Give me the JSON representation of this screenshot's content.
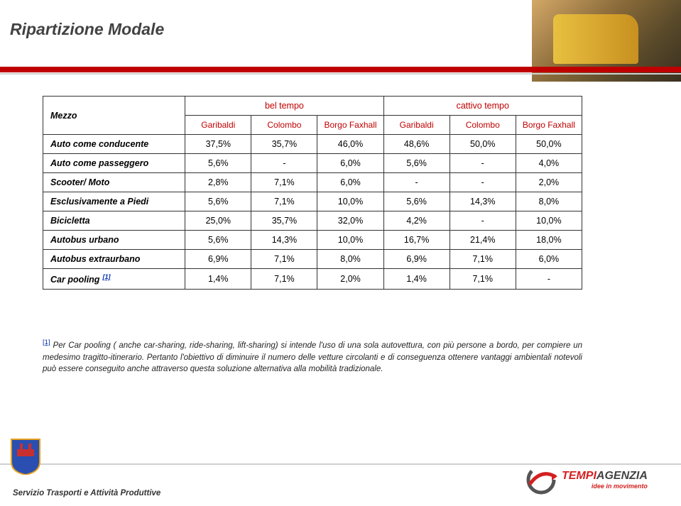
{
  "title": "Ripartizione Modale",
  "table": {
    "mezzo_label": "Mezzo",
    "group_headers": [
      "bel tempo",
      "cattivo tempo"
    ],
    "sub_headers": [
      "Garibaldi",
      "Colombo",
      "Borgo Faxhall",
      "Garibaldi",
      "Colombo",
      "Borgo Faxhall"
    ],
    "rows": [
      {
        "label": "Auto come conducente",
        "values": [
          "37,5%",
          "35,7%",
          "46,0%",
          "48,6%",
          "50,0%",
          "50,0%"
        ]
      },
      {
        "label": "Auto come passeggero",
        "values": [
          "5,6%",
          "-",
          "6,0%",
          "5,6%",
          "-",
          "4,0%"
        ]
      },
      {
        "label": "Scooter/ Moto",
        "values": [
          "2,8%",
          "7,1%",
          "6,0%",
          "-",
          "-",
          "2,0%"
        ]
      },
      {
        "label": "Esclusivamente a Piedi",
        "values": [
          "5,6%",
          "7,1%",
          "10,0%",
          "5,6%",
          "14,3%",
          "8,0%"
        ]
      },
      {
        "label": "Bicicletta",
        "values": [
          "25,0%",
          "35,7%",
          "32,0%",
          "4,2%",
          "-",
          "10,0%"
        ]
      },
      {
        "label": "Autobus urbano",
        "values": [
          "5,6%",
          "14,3%",
          "10,0%",
          "16,7%",
          "21,4%",
          "18,0%"
        ]
      },
      {
        "label": "Autobus extraurbano",
        "values": [
          "6,9%",
          "7,1%",
          "8,0%",
          "6,9%",
          "7,1%",
          "6,0%"
        ]
      },
      {
        "label": "Car pooling",
        "sup": "[1]",
        "values": [
          "1,4%",
          "7,1%",
          "2,0%",
          "1,4%",
          "7,1%",
          "-"
        ]
      }
    ],
    "col_widths": [
      "200px",
      "93px",
      "93px",
      "93px",
      "93px",
      "93px",
      "93px"
    ],
    "border_color": "#333333",
    "header_text_color": "#c00000",
    "font_size_pt": 9.5
  },
  "footnote": {
    "sup": "[1]",
    "text": "Per Car pooling ( anche car-sharing, ride-sharing, lift-sharing) si intende l'uso di una sola autovettura, con più persone a bordo, per compiere un medesimo tragitto-itinerario. Pertanto l'obiettivo di diminuire il numero delle vetture circolanti e di conseguenza ottenere vantaggi ambientali notevoli può essere conseguito anche attraverso questa soluzione alternativa alla mobilità tradizionale."
  },
  "footer": {
    "service_text": "Servizio Trasporti e Attività Produttive",
    "brand_tempi": "TEMPI",
    "brand_agenzia": "AGENZIA",
    "brand_tagline": "idee in movimento"
  },
  "colors": {
    "accent_red": "#c00000",
    "brand_red": "#d42020",
    "text_gray": "#424242",
    "divider_gray": "#d0d0d0",
    "crest_blue": "#2a4fb0",
    "crest_gold": "#e4a020"
  }
}
